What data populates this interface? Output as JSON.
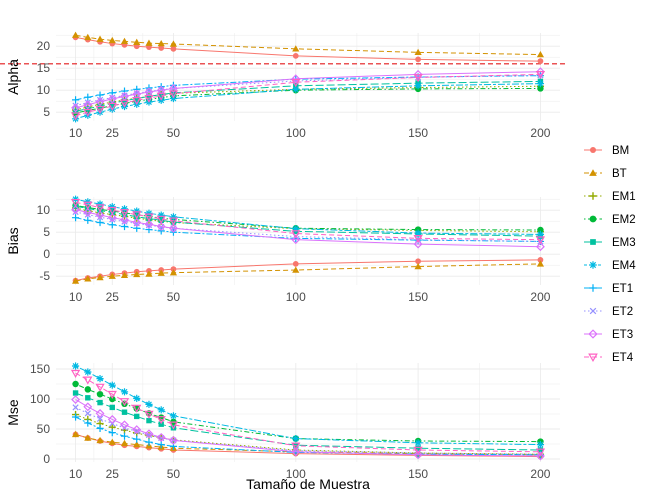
{
  "chart_data": {
    "type": "line",
    "xlabel": "Tamaño de Muestra",
    "x": [
      10,
      15,
      20,
      25,
      30,
      35,
      40,
      45,
      50,
      100,
      150,
      200
    ],
    "x_ticks": [
      10,
      25,
      50,
      100,
      150,
      200
    ],
    "xlim": [
      2,
      208
    ],
    "legend_position": "right",
    "series_styles": [
      {
        "name": "BM",
        "color": "#F8766D",
        "shape": "circle",
        "linetype": "solid"
      },
      {
        "name": "BT",
        "color": "#D39200",
        "shape": "triangle",
        "linetype": "dashed"
      },
      {
        "name": "EM1",
        "color": "#93AA00",
        "shape": "plus",
        "linetype": "dotted"
      },
      {
        "name": "EM2",
        "color": "#00BA38",
        "shape": "dot",
        "linetype": "dotdash"
      },
      {
        "name": "EM3",
        "color": "#00C19F",
        "shape": "square",
        "linetype": "longdash"
      },
      {
        "name": "EM4",
        "color": "#00B9E3",
        "shape": "asterisk",
        "linetype": "twodash"
      },
      {
        "name": "ET1",
        "color": "#00B0F6",
        "shape": "cross",
        "linetype": "dashdot2"
      },
      {
        "name": "ET2",
        "color": "#9590FF",
        "shape": "x",
        "linetype": "dotted"
      },
      {
        "name": "ET3",
        "color": "#DB72FB",
        "shape": "diamond",
        "linetype": "solid"
      },
      {
        "name": "ET4",
        "color": "#FF61C3",
        "shape": "invtri",
        "linetype": "dashed"
      }
    ],
    "panels": [
      {
        "ylabel": "Alpha",
        "ylim": [
          3,
          23
        ],
        "y_ticks": [
          5,
          10,
          15,
          20
        ],
        "reference_line": {
          "y": 16,
          "color": "#e41a1c",
          "linetype": "dashed"
        },
        "series": [
          {
            "name": "BM",
            "values": [
              22.0,
              21.5,
              21.0,
              20.6,
              20.3,
              20.0,
              19.8,
              19.6,
              19.4,
              17.8,
              17.0,
              16.6
            ]
          },
          {
            "name": "BT",
            "values": [
              22.5,
              22.0,
              21.6,
              21.3,
              21.1,
              20.9,
              20.7,
              20.6,
              20.5,
              19.4,
              18.6,
              18.1
            ]
          },
          {
            "name": "EM1",
            "values": [
              5.5,
              6.2,
              6.8,
              7.3,
              7.8,
              8.2,
              8.6,
              9.0,
              9.3,
              10.2,
              10.6,
              10.9
            ]
          },
          {
            "name": "EM2",
            "values": [
              4.8,
              5.4,
              5.9,
              6.5,
              7.0,
              7.5,
              7.9,
              8.3,
              8.7,
              10.0,
              10.3,
              10.4
            ]
          },
          {
            "name": "EM3",
            "values": [
              5.2,
              5.8,
              6.4,
              7.0,
              7.6,
              8.1,
              8.6,
              9.0,
              9.4,
              11.0,
              11.6,
              12.0
            ]
          },
          {
            "name": "EM4",
            "values": [
              3.5,
              4.3,
              5.0,
              5.7,
              6.3,
              6.8,
              7.3,
              7.7,
              8.1,
              10.2,
              11.0,
              11.5
            ]
          },
          {
            "name": "ET1",
            "values": [
              7.8,
              8.4,
              8.9,
              9.4,
              9.8,
              10.2,
              10.5,
              10.8,
              11.1,
              12.5,
              13.0,
              13.3
            ]
          },
          {
            "name": "ET2",
            "values": [
              6.5,
              7.2,
              7.8,
              8.3,
              8.8,
              9.3,
              9.7,
              10.1,
              10.4,
              12.1,
              12.9,
              13.4
            ]
          },
          {
            "name": "ET3",
            "values": [
              6.0,
              6.7,
              7.4,
              8.0,
              8.6,
              9.1,
              9.6,
              10.0,
              10.4,
              12.6,
              13.6,
              14.2
            ]
          },
          {
            "name": "ET4",
            "values": [
              4.2,
              5.0,
              5.7,
              6.4,
              7.1,
              7.7,
              8.2,
              8.7,
              9.2,
              11.8,
              12.9,
              13.6
            ]
          }
        ]
      },
      {
        "ylabel": "Bias",
        "ylim": [
          -7,
          13
        ],
        "y_ticks": [
          -5,
          0,
          5,
          10
        ],
        "series": [
          {
            "name": "BM",
            "values": [
              -6.0,
              -5.4,
              -5.0,
              -4.6,
              -4.3,
              -4.0,
              -3.8,
              -3.6,
              -3.4,
              -2.2,
              -1.6,
              -1.3
            ]
          },
          {
            "name": "BT",
            "values": [
              -6.1,
              -5.6,
              -5.3,
              -5.0,
              -4.8,
              -4.6,
              -4.5,
              -4.3,
              -4.2,
              -3.6,
              -2.8,
              -2.2
            ]
          },
          {
            "name": "EM1",
            "values": [
              10.5,
              9.9,
              9.4,
              9.0,
              8.6,
              8.2,
              7.8,
              7.5,
              7.2,
              5.8,
              5.4,
              5.1
            ]
          },
          {
            "name": "EM2",
            "values": [
              11.1,
              10.6,
              10.2,
              9.8,
              9.4,
              9.0,
              8.6,
              8.2,
              7.9,
              5.9,
              5.6,
              5.5
            ]
          },
          {
            "name": "EM3",
            "values": [
              10.9,
              10.4,
              9.9,
              9.5,
              9.0,
              8.5,
              8.1,
              7.7,
              7.3,
              5.2,
              4.6,
              4.1
            ]
          },
          {
            "name": "EM4",
            "values": [
              12.5,
              11.9,
              11.4,
              10.8,
              10.3,
              9.8,
              9.3,
              8.9,
              8.5,
              5.8,
              4.8,
              4.5
            ]
          },
          {
            "name": "ET1",
            "values": [
              8.3,
              7.7,
              7.2,
              6.7,
              6.3,
              5.9,
              5.6,
              5.3,
              5.0,
              3.6,
              3.2,
              2.9
            ]
          },
          {
            "name": "ET2",
            "values": [
              9.6,
              9.0,
              8.4,
              7.9,
              7.4,
              7.0,
              6.6,
              6.2,
              5.9,
              4.0,
              3.3,
              2.9
            ]
          },
          {
            "name": "ET3",
            "values": [
              10.1,
              9.5,
              8.9,
              8.3,
              7.8,
              7.2,
              6.8,
              6.3,
              5.9,
              3.3,
              2.3,
              1.7
            ]
          },
          {
            "name": "ET4",
            "values": [
              11.8,
              11.2,
              10.6,
              10.0,
              9.5,
              9.0,
              8.5,
              8.0,
              7.6,
              4.7,
              3.6,
              3.3
            ]
          }
        ]
      },
      {
        "ylabel": "Mse",
        "ylim": [
          -5,
          160
        ],
        "y_ticks": [
          0,
          50,
          100,
          150
        ],
        "series": [
          {
            "name": "BM",
            "values": [
              41,
              35,
              30,
              26,
              23,
              21,
              19,
              17,
              15,
              9,
              6,
              4
            ]
          },
          {
            "name": "BT",
            "values": [
              41,
              35,
              31,
              28,
              26,
              24,
              22,
              20,
              18,
              12,
              9,
              7
            ]
          },
          {
            "name": "EM1",
            "values": [
              74,
              66,
              59,
              53,
              48,
              43,
              39,
              35,
              32,
              15,
              10,
              8
            ]
          },
          {
            "name": "EM2",
            "values": [
              125,
              116,
              108,
              100,
              92,
              84,
              76,
              69,
              62,
              34,
              30,
              29
            ]
          },
          {
            "name": "EM3",
            "values": [
              110,
              102,
              94,
              86,
              78,
              71,
              64,
              58,
              52,
              23,
              18,
              15
            ]
          },
          {
            "name": "EM4",
            "values": [
              155,
              145,
              134,
              123,
              112,
              101,
              91,
              82,
              72,
              34,
              27,
              24
            ]
          },
          {
            "name": "ET1",
            "values": [
              70,
              60,
              51,
              44,
              38,
              33,
              28,
              24,
              21,
              11,
              8,
              7
            ]
          },
          {
            "name": "ET2",
            "values": [
              86,
              76,
              67,
              59,
              52,
              46,
              40,
              35,
              31,
              14,
              10,
              8
            ]
          },
          {
            "name": "ET3",
            "values": [
              99,
              87,
              76,
              66,
              57,
              49,
              42,
              36,
              31,
              12,
              7,
              5
            ]
          },
          {
            "name": "ET4",
            "values": [
              143,
              132,
              120,
              108,
              96,
              85,
              75,
              66,
              57,
              22,
              15,
              12
            ]
          }
        ]
      }
    ]
  }
}
